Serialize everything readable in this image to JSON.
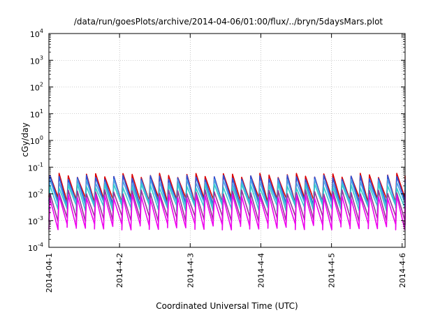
{
  "chart_data": {
    "type": "line",
    "title": "/data/run/goesPlots/archive/2014-04-06/01:00/flux/../bryn/5daysMars.plot",
    "xlabel": "Coordinated Universal Time (UTC)",
    "ylabel": "cGy/day",
    "yscale": "log",
    "ylim": [
      0.0001,
      10000
    ],
    "grid": true,
    "legend": "none",
    "x_range": [
      "2014-04-01T00:00",
      "2014-04-06T01:00"
    ],
    "y_ticks": [
      {
        "value": 0.0001,
        "base": "10",
        "exp": "-4"
      },
      {
        "value": 0.001,
        "base": "10",
        "exp": "-3"
      },
      {
        "value": 0.01,
        "base": "10",
        "exp": "-2"
      },
      {
        "value": 0.1,
        "base": "10",
        "exp": "-1"
      },
      {
        "value": 1,
        "base": "10",
        "exp": "0"
      },
      {
        "value": 10,
        "base": "10",
        "exp": "1"
      },
      {
        "value": 100,
        "base": "10",
        "exp": "2"
      },
      {
        "value": 1000,
        "base": "10",
        "exp": "3"
      },
      {
        "value": 10000,
        "base": "10",
        "exp": "4"
      }
    ],
    "x_ticks": [
      {
        "value": "2014-04-01",
        "label": "2014-04-1"
      },
      {
        "value": "2014-04-02",
        "label": "2014-4-2"
      },
      {
        "value": "2014-04-03",
        "label": "2014-4-3"
      },
      {
        "value": "2014-04-04",
        "label": "2014-4-4"
      },
      {
        "value": "2014-04-05",
        "label": "2014-4-5"
      },
      {
        "value": "2014-04-06",
        "label": "2014-4-6"
      }
    ],
    "cycle_hours": 3.1,
    "series": [
      {
        "color": "#dd0000",
        "peak": 0.05,
        "trough": 0.006
      },
      {
        "color": "#2a52d9",
        "peak": 0.042,
        "trough": 0.0045
      },
      {
        "color": "#4aa0e6",
        "peak": 0.03,
        "trough": 0.004
      },
      {
        "color": "#33cccc",
        "peak": 0.02,
        "trough": 0.003
      },
      {
        "color": "#993399",
        "peak": 0.012,
        "trough": 0.0012
      },
      {
        "color": "#ee00ee",
        "peak": 0.008,
        "trough": 0.0006
      }
    ]
  }
}
